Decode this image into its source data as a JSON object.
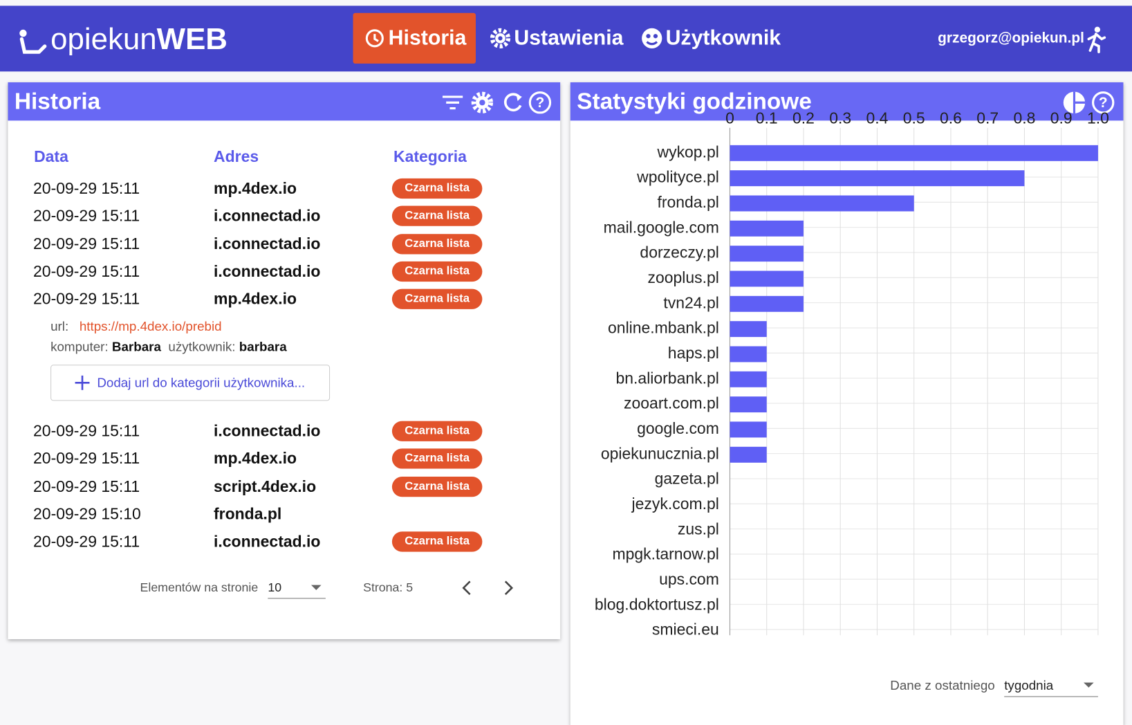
{
  "header": {
    "logo": {
      "part1": "opiekun",
      "part2": "WEB"
    },
    "nav": [
      "Historia",
      "Ustawienia",
      "Użytkownik"
    ],
    "user": "grzegorz@opiekun.pl"
  },
  "history": {
    "title": "Historia",
    "columns": [
      "Data",
      "Adres",
      "Kategoria"
    ],
    "rows": [
      {
        "date": "20-09-29 15:11",
        "address": "mp.4dex.io",
        "category": "Czarna lista"
      },
      {
        "date": "20-09-29 15:11",
        "address": "i.connectad.io",
        "category": "Czarna lista"
      },
      {
        "date": "20-09-29 15:11",
        "address": "i.connectad.io",
        "category": "Czarna lista"
      },
      {
        "date": "20-09-29 15:11",
        "address": "i.connectad.io",
        "category": "Czarna lista"
      },
      {
        "date": "20-09-29 15:11",
        "address": "mp.4dex.io",
        "category": "Czarna lista"
      },
      {
        "date": "20-09-29 15:11",
        "address": "i.connectad.io",
        "category": "Czarna lista"
      },
      {
        "date": "20-09-29 15:11",
        "address": "mp.4dex.io",
        "category": "Czarna lista"
      },
      {
        "date": "20-09-29 15:11",
        "address": "script.4dex.io",
        "category": "Czarna lista"
      },
      {
        "date": "20-09-29 15:10",
        "address": "fronda.pl"
      },
      {
        "date": "20-09-29 15:11",
        "address": "i.connectad.io",
        "category": "Czarna lista"
      }
    ],
    "details": {
      "url_label": "url:",
      "url": "https://mp.4dex.io/prebid",
      "computer_label": "komputer:",
      "computer": "Barbara",
      "user_label": "użytkownik:",
      "user": "barbara",
      "button": "Dodaj url do kategorii użytkownika..."
    },
    "pagination": {
      "per_page_label": "Elementów na stronie",
      "per_page": "10",
      "page": "Strona: 5"
    }
  },
  "stats": {
    "title": "Statystyki godzinowe",
    "period_label": "Dane z ostatniego",
    "period": "tygodnia"
  },
  "chart_data": {
    "type": "bar",
    "orientation": "horizontal",
    "color": "#5f5ff5",
    "grid": true,
    "categories": [
      "wykop.pl",
      "wpolityce.pl",
      "fronda.pl",
      "mail.google.com",
      "dorzeczy.pl",
      "zooplus.pl",
      "tvn24.pl",
      "online.mbank.pl",
      "haps.pl",
      "bn.aliorbank.pl",
      "zooart.com.pl",
      "google.com",
      "opiekunucznia.pl",
      "gazeta.pl",
      "jezyk.com.pl",
      "zus.pl",
      "mpgk.tarnow.pl",
      "ups.com",
      "blog.doktortusz.pl",
      "smieci.eu"
    ],
    "values": [
      1.0,
      0.8,
      0.5,
      0.2,
      0.2,
      0.2,
      0.2,
      0.1,
      0.1,
      0.1,
      0.1,
      0.1,
      0.1,
      0,
      0,
      0,
      0,
      0,
      0,
      0
    ],
    "xlim": [
      0,
      1
    ],
    "xticks": [
      0,
      0.1,
      0.2,
      0.3,
      0.4,
      0.5,
      0.6,
      0.7,
      0.8,
      0.9,
      {
        "value": 1,
        "label": "1.0"
      }
    ]
  }
}
